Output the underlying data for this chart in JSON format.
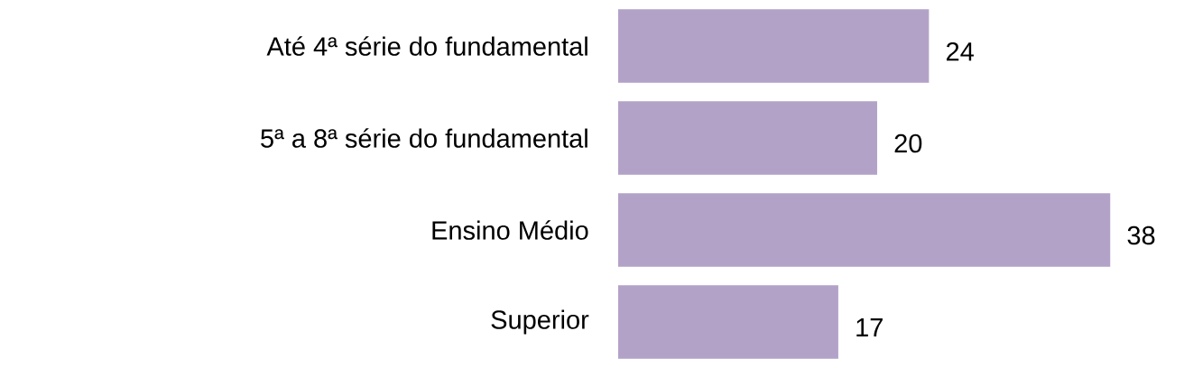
{
  "chart_data": {
    "type": "bar",
    "orientation": "horizontal",
    "categories": [
      "Até 4ª série do fundamental",
      "5ª a 8ª série do fundamental",
      "Ensino Médio",
      "Superior"
    ],
    "values": [
      24,
      20,
      38,
      17
    ],
    "color": "#b3a2c7",
    "data_labels": true
  }
}
